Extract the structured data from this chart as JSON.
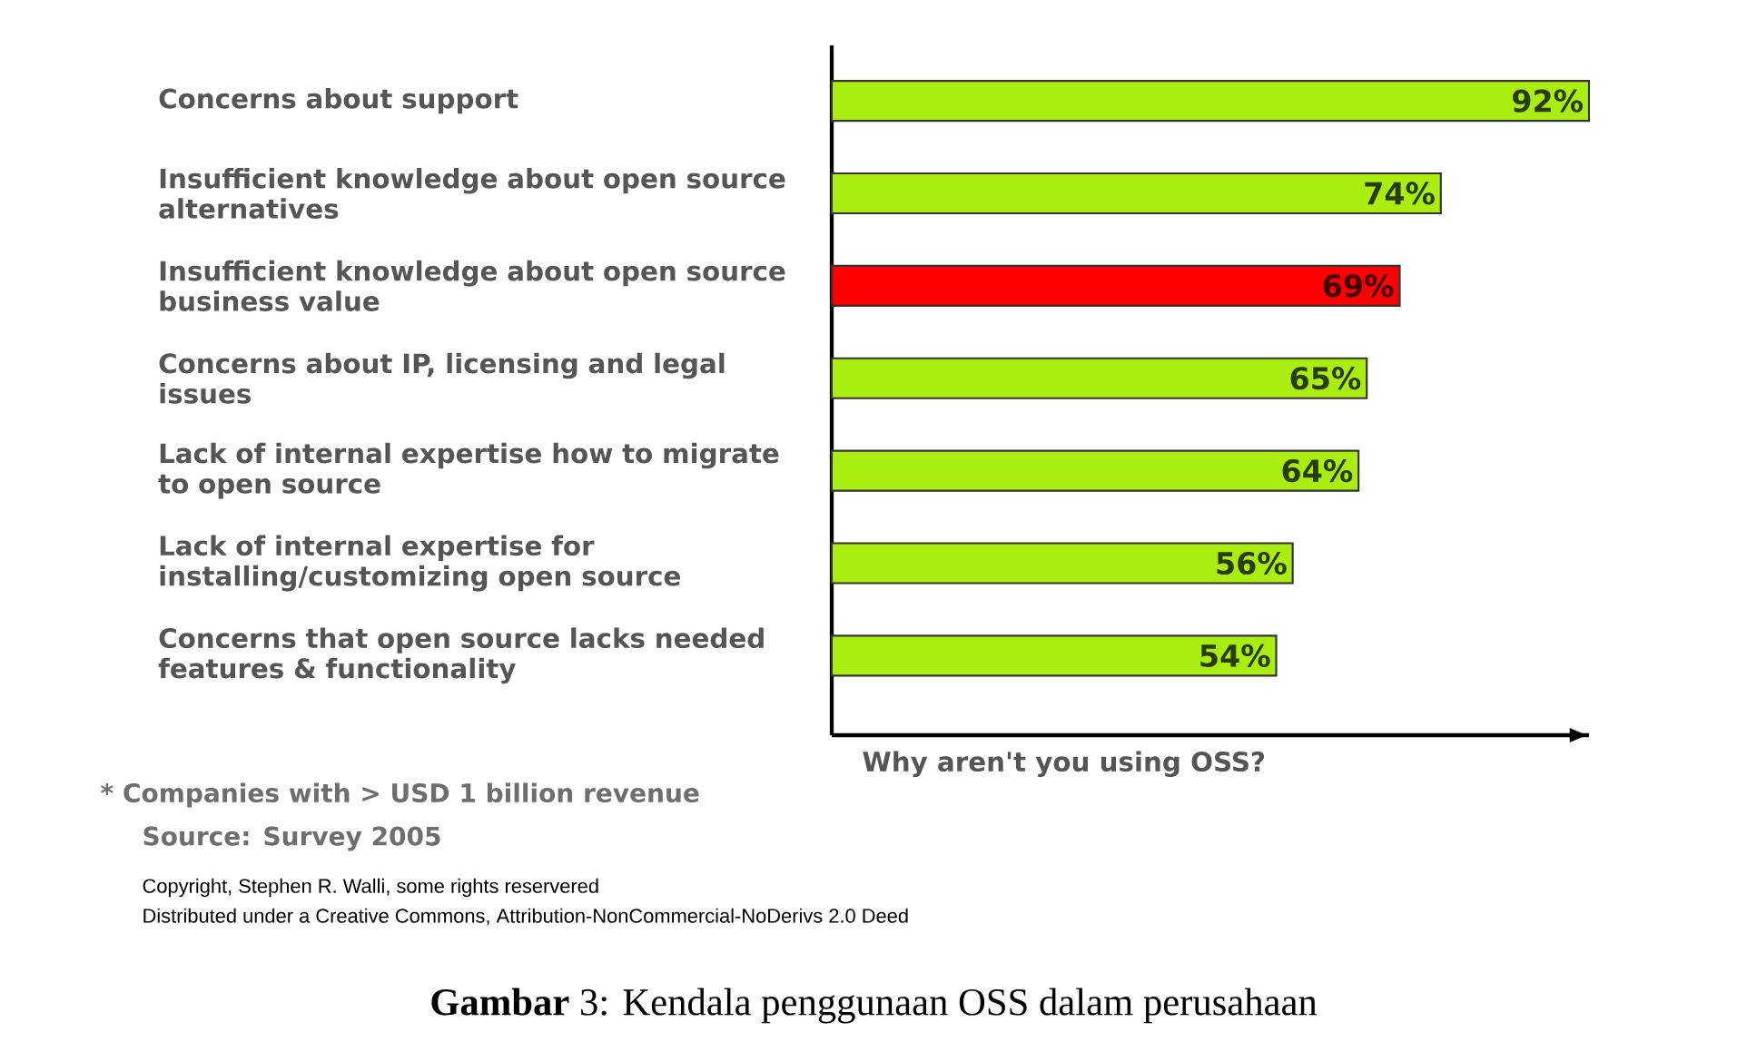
{
  "chart_data": {
    "type": "bar",
    "orientation": "horizontal",
    "xlabel": "Why aren't you using OSS?",
    "categories": [
      "Concerns about support",
      "Insufficient knowledge about open source alternatives",
      "Insufficient knowledge about open source business value",
      "Concerns about IP, licensing and legal issues",
      "Lack of internal expertise how to migrate to open source",
      "Lack of internal expertise for installing/customizing open source",
      "Concerns that open source lacks needed features & functionality"
    ],
    "values": [
      92,
      74,
      69,
      65,
      64,
      56,
      54
    ],
    "value_labels": [
      "92%",
      "74%",
      "69%",
      "65%",
      "64%",
      "56%",
      "54%"
    ],
    "colors": [
      "#aaee11",
      "#aaee11",
      "#ff0000",
      "#aaee11",
      "#aaee11",
      "#aaee11",
      "#aaee11"
    ],
    "annotations": [
      "* Companies with > USD 1 billion revenue",
      "Source: Survey 2005",
      "Copyright, Stephen R. Walli, some rights reservered",
      "Distributed under a Creative Commons, Attribution-NonCommercial-NoDerivs 2.0 Deed",
      "**Gambar** 3: Kendala penggunaan OSS dalam perusahaan"
    ]
  }
}
